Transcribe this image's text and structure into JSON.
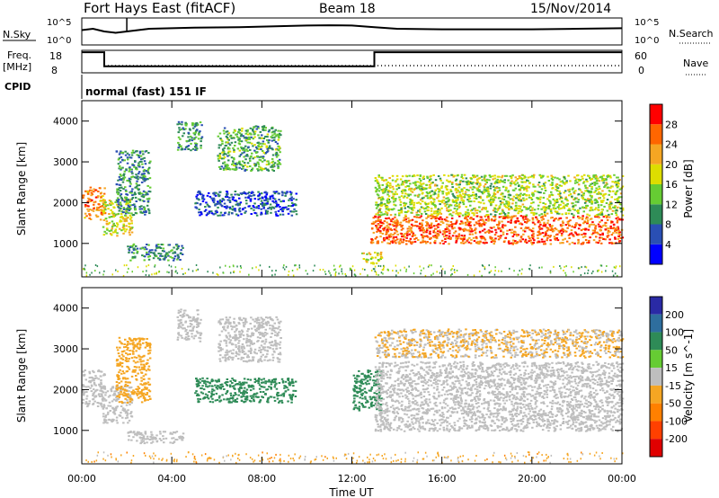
{
  "header": {
    "station": "Fort Hays East (fitACF)",
    "beam": "Beam 18",
    "date": "15/Nov/2014"
  },
  "panel_labels": {
    "nsky": "N.Sky",
    "freq_line1": "Freq.",
    "freq_line2": "[MHz]",
    "cpid": "CPID",
    "nsearch": "N.Search",
    "nave": "Nave"
  },
  "cpid_text": "normal (fast) 151 IF",
  "noise_axis": {
    "tick_top": "10^5",
    "tick_bottom": "10^0",
    "right_top": "10^5",
    "right_bottom": "10^0"
  },
  "freq_axis": {
    "left_ticks": [
      "18",
      "8"
    ],
    "right_ticks": [
      "60",
      "0"
    ]
  },
  "time_axis": {
    "label": "Time UT",
    "ticks": [
      "00:00",
      "04:00",
      "08:00",
      "12:00",
      "16:00",
      "20:00",
      "00:00"
    ]
  },
  "colors": {
    "power": [
      "#0000ff",
      "#2a4fb4",
      "#2e8b57",
      "#66cc33",
      "#dddd00",
      "#f5a623",
      "#ff6600",
      "#ff0000"
    ],
    "velocity": [
      "#2a2aa5",
      "#2e6e9e",
      "#2e8b57",
      "#66cc33",
      "#bebebe",
      "#f5a623",
      "#ff8000",
      "#ff4000",
      "#e00000"
    ]
  },
  "chart_data": [
    {
      "type": "line",
      "panel": "noise",
      "ylabel_left": "N.Sky",
      "ylabel_right": "N.Search",
      "x_unit": "hours UT",
      "xlim": [
        0,
        24
      ],
      "series": [
        {
          "name": "N.Sky",
          "x": [
            0,
            0.5,
            1.0,
            1.5,
            2,
            3,
            4,
            5,
            6,
            7,
            8,
            9,
            10,
            11,
            12,
            13,
            14,
            16,
            18,
            20,
            22,
            24
          ],
          "y": [
            0.55,
            0.6,
            0.5,
            0.45,
            0.5,
            0.6,
            0.62,
            0.64,
            0.65,
            0.66,
            0.68,
            0.7,
            0.72,
            0.73,
            0.72,
            0.66,
            0.6,
            0.58,
            0.58,
            0.58,
            0.6,
            0.62
          ]
        }
      ]
    },
    {
      "type": "line",
      "panel": "frequency",
      "ylabel_left": "Freq. [MHz]",
      "ylabel_right": "Nave",
      "xlim": [
        0,
        24
      ],
      "yticks_left": [
        8,
        18
      ],
      "yticks_right": [
        0,
        60
      ],
      "series": [
        {
          "name": "Freq.",
          "x": [
            0,
            1.0,
            1.0,
            13.0,
            13.0,
            24
          ],
          "y": [
            18,
            18,
            10.5,
            10.5,
            18,
            18
          ]
        },
        {
          "name": "Nave",
          "x": [
            0,
            1.0,
            1.0,
            24
          ],
          "y": [
            18,
            18,
            20,
            20
          ]
        }
      ]
    },
    {
      "type": "heatmap",
      "panel": "power",
      "ylabel": "Slant Range [km]",
      "colorbar_label": "Power [dB]",
      "colorbar_ticks": [
        "4",
        "8",
        "12",
        "16",
        "20",
        "24",
        "28"
      ],
      "xlim": [
        0,
        24
      ],
      "ylim": [
        180,
        4500
      ],
      "yticks": [
        1000,
        2000,
        3000,
        4000
      ],
      "regions": [
        {
          "t0": 0.0,
          "t1": 1.0,
          "r0": 1600,
          "r1": 2400,
          "level": 24
        },
        {
          "t0": 0.9,
          "t1": 2.2,
          "r0": 1200,
          "r1": 2100,
          "level": 18
        },
        {
          "t0": 1.5,
          "t1": 3.0,
          "r0": 1700,
          "r1": 3300,
          "level": 10
        },
        {
          "t0": 2.0,
          "t1": 4.5,
          "r0": 600,
          "r1": 1000,
          "level": 10
        },
        {
          "t0": 4.2,
          "t1": 5.3,
          "r0": 3300,
          "r1": 4000,
          "level": 10
        },
        {
          "t0": 6.0,
          "t1": 8.8,
          "r0": 2800,
          "r1": 3900,
          "level": 12
        },
        {
          "t0": 5.0,
          "t1": 9.5,
          "r0": 1700,
          "r1": 2300,
          "level": 6
        },
        {
          "t0": 12.4,
          "t1": 13.3,
          "r0": 500,
          "r1": 800,
          "level": 18
        },
        {
          "t0": 12.8,
          "t1": 24.0,
          "r0": 1000,
          "r1": 1700,
          "level": 26
        },
        {
          "t0": 13.0,
          "t1": 24.0,
          "r0": 1700,
          "r1": 2700,
          "level": 16
        }
      ]
    },
    {
      "type": "heatmap",
      "panel": "velocity",
      "ylabel": "Slant Range [km]",
      "colorbar_label": "Velocity [m s^-1]",
      "colorbar_ticks": [
        "200",
        "100",
        "50",
        "15",
        "-15",
        "-50",
        "-100",
        "-200"
      ],
      "xlim": [
        0,
        24
      ],
      "ylim": [
        180,
        4500
      ],
      "yticks": [
        1000,
        2000,
        3000,
        4000
      ],
      "regions": [
        {
          "t0": 0.0,
          "t1": 1.0,
          "r0": 1600,
          "r1": 2500,
          "vel": 0
        },
        {
          "t0": 0.9,
          "t1": 2.2,
          "r0": 1200,
          "r1": 2100,
          "vel": -10
        },
        {
          "t0": 1.5,
          "t1": 3.0,
          "r0": 1700,
          "r1": 3300,
          "vel": -60
        },
        {
          "t0": 2.0,
          "t1": 4.5,
          "r0": 700,
          "r1": 1000,
          "vel": 0
        },
        {
          "t0": 4.2,
          "t1": 5.3,
          "r0": 3200,
          "r1": 4000,
          "vel": -20
        },
        {
          "t0": 6.0,
          "t1": 8.8,
          "r0": 2700,
          "r1": 3800,
          "vel": 0
        },
        {
          "t0": 5.0,
          "t1": 9.5,
          "r0": 1700,
          "r1": 2300,
          "vel": 60
        },
        {
          "t0": 12.0,
          "t1": 13.3,
          "r0": 1500,
          "r1": 2500,
          "vel": 40
        },
        {
          "t0": 13.0,
          "t1": 24.0,
          "r0": 1000,
          "r1": 2700,
          "vel": 0
        },
        {
          "t0": 13.0,
          "t1": 24.0,
          "r0": 2800,
          "r1": 3500,
          "vel": -30
        }
      ]
    }
  ]
}
